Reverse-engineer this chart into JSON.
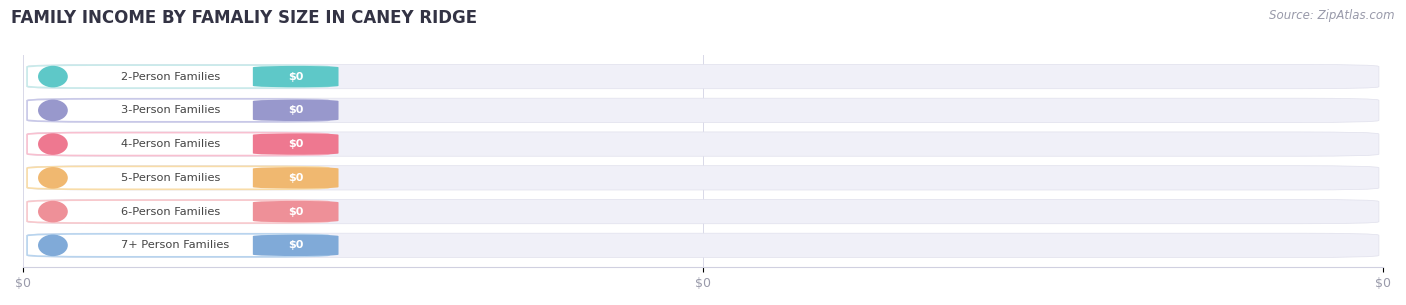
{
  "title": "FAMILY INCOME BY FAMALIY SIZE IN CANEY RIDGE",
  "source_text": "Source: ZipAtlas.com",
  "categories": [
    "2-Person Families",
    "3-Person Families",
    "4-Person Families",
    "5-Person Families",
    "6-Person Families",
    "7+ Person Families"
  ],
  "values": [
    0,
    0,
    0,
    0,
    0,
    0
  ],
  "bar_colors": [
    "#5ec8c8",
    "#9898cc",
    "#ee7890",
    "#f0b870",
    "#ee9098",
    "#80aad8"
  ],
  "label_bg_color": "#ffffff",
  "label_border_colors": [
    "#c8eaea",
    "#c8c8e8",
    "#f8c0d0",
    "#f8dca8",
    "#f8c8cc",
    "#b8d4ee"
  ],
  "row_bg_color": "#f0f0f8",
  "background_color": "#ffffff",
  "title_fontsize": 12,
  "source_fontsize": 8.5,
  "value_labels": [
    "$0",
    "$0",
    "$0",
    "$0",
    "$0",
    "$0"
  ],
  "xtick_labels": [
    "$0",
    "$0",
    "$0"
  ],
  "xtick_positions": [
    0,
    0.5,
    1.0
  ],
  "xlim": [
    0,
    1.0
  ],
  "ylim": [
    -0.65,
    5.65
  ],
  "n_rows": 6
}
